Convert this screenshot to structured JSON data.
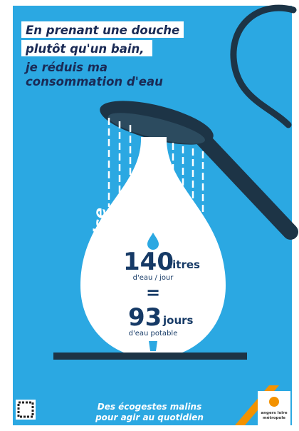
{
  "header": {
    "lines": [
      "En prenant une douche",
      "plutôt qu'un bain,",
      "je réduis ma",
      "consommation d'eau"
    ]
  },
  "side_text": "J'économise",
  "stats": {
    "litres_value": "140",
    "litres_unit": "litres",
    "litres_sub": "d'eau / jour",
    "equals": "=",
    "days_value": "93",
    "days_unit": "jours",
    "days_sub": "d'eau potable"
  },
  "footer": {
    "lines": [
      "Des écogestes malins",
      "pour agir au quotidien"
    ]
  },
  "logo": {
    "lines": [
      "angers loire",
      "métropole"
    ]
  }
}
